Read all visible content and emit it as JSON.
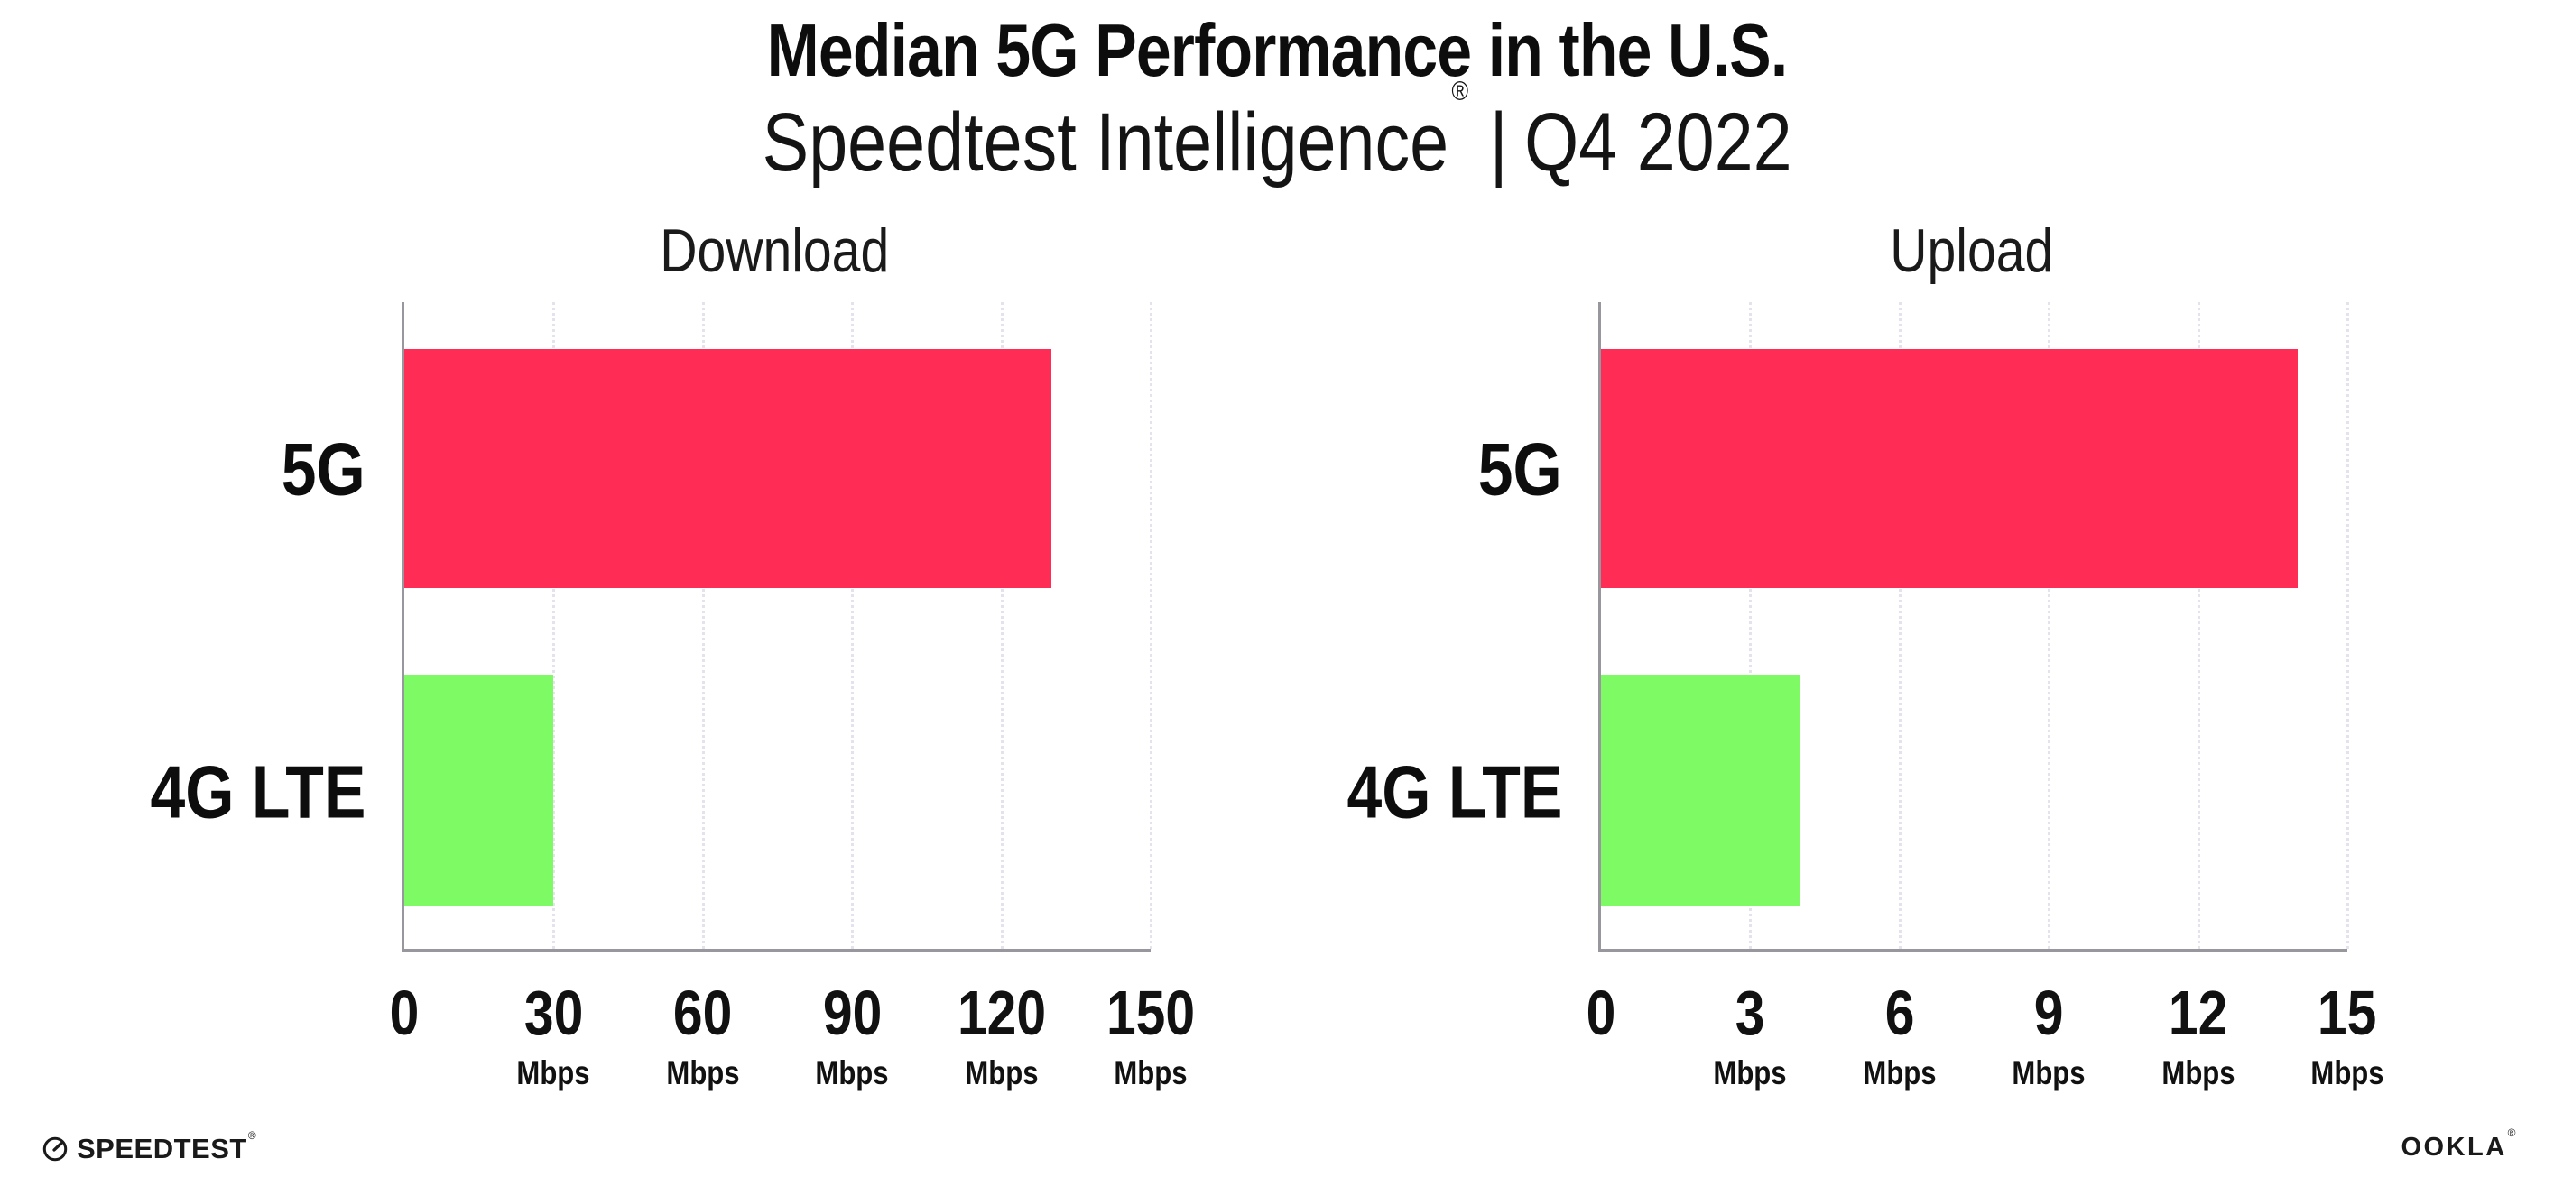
{
  "header": {
    "title": "Median 5G Performance in the U.S.",
    "subtitle": {
      "brand": "Speedtest Intelligence",
      "registered_mark": "®",
      "separator": "|",
      "period": "Q4 2022"
    }
  },
  "chart_data": [
    {
      "type": "bar",
      "orientation": "horizontal",
      "title": "Download",
      "categories": [
        "5G",
        "4G LTE"
      ],
      "values": [
        130,
        30
      ],
      "unit": "Mbps",
      "xlim": [
        0,
        150
      ],
      "xticks": [
        0,
        30,
        60,
        90,
        120,
        150
      ],
      "bar_colors": [
        "#FF2D55",
        "#7EFA65"
      ],
      "grid": "vertical-dotted",
      "value_labels_shown": false
    },
    {
      "type": "bar",
      "orientation": "horizontal",
      "title": "Upload",
      "categories": [
        "5G",
        "4G LTE"
      ],
      "values": [
        14,
        4
      ],
      "unit": "Mbps",
      "xlim": [
        0,
        15
      ],
      "xticks": [
        0,
        3,
        6,
        9,
        12,
        15
      ],
      "bar_colors": [
        "#FF2D55",
        "#7EFA65"
      ],
      "grid": "vertical-dotted",
      "value_labels_shown": false
    }
  ],
  "footer": {
    "speedtest": {
      "label": "SPEEDTEST",
      "registered_mark": "®"
    },
    "ookla": {
      "label": "OOKLA",
      "registered_mark": "®"
    }
  },
  "icons": {
    "speedtest_logo_icon": "speedometer-gauge"
  },
  "colors": {
    "bar_5g": "#FF2D55",
    "bar_4g_lte": "#7EFA65",
    "axis": "#97979D",
    "gridline": "#E3E3EE",
    "text": "#111111",
    "background": "#FFFFFF"
  }
}
